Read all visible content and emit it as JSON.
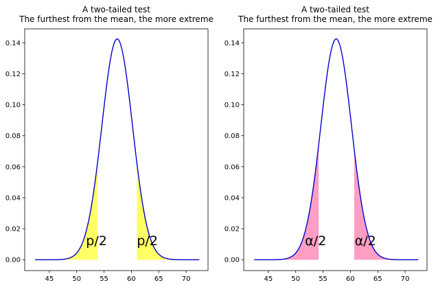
{
  "chart_data": [
    {
      "type": "line",
      "title": "A two-tailed test",
      "subtitle": "The furthest from the mean, the more extreme",
      "xlabel": "",
      "ylabel": "",
      "grid": false,
      "xlim": [
        40.5,
        74.0
      ],
      "ylim": [
        -0.007,
        0.149
      ],
      "x_ticks": [
        45,
        50,
        55,
        60,
        65,
        70
      ],
      "y_ticks": [
        0.0,
        0.02,
        0.04,
        0.06,
        0.08,
        0.1,
        0.12,
        0.14
      ],
      "y_tick_labels": [
        "0.00",
        "0.02",
        "0.04",
        "0.06",
        "0.08",
        "0.10",
        "0.12",
        "0.14"
      ],
      "curve": {
        "kind": "normal_pdf",
        "mean": 57.4,
        "sd": 2.8,
        "x_range": [
          42.4,
          72.4
        ],
        "peak": 0.1425,
        "color": "#0000cc"
      },
      "shaded_regions": [
        {
          "from": 42.4,
          "to": 53.8,
          "color": "#ffff66"
        },
        {
          "from": 61.0,
          "to": 72.4,
          "color": "#ffff66"
        }
      ],
      "annotations": [
        {
          "text": "p/2",
          "x": 51.7,
          "y": 0.0095
        },
        {
          "text": "p/2",
          "x": 61.0,
          "y": 0.0095
        }
      ]
    },
    {
      "type": "line",
      "title": "A two-tailed test",
      "subtitle": "The furthest from the mean, the more extreme",
      "xlabel": "",
      "ylabel": "",
      "grid": false,
      "xlim": [
        40.5,
        74.0
      ],
      "ylim": [
        -0.007,
        0.149
      ],
      "x_ticks": [
        45,
        50,
        55,
        60,
        65,
        70
      ],
      "y_ticks": [
        0.0,
        0.02,
        0.04,
        0.06,
        0.08,
        0.1,
        0.12,
        0.14
      ],
      "y_tick_labels": [
        "0.00",
        "0.02",
        "0.04",
        "0.06",
        "0.08",
        "0.10",
        "0.12",
        "0.14"
      ],
      "curve": {
        "kind": "normal_pdf",
        "mean": 57.4,
        "sd": 2.8,
        "x_range": [
          42.4,
          72.4
        ],
        "peak": 0.1425,
        "color": "#0000cc"
      },
      "shaded_regions": [
        {
          "from": 42.4,
          "to": 54.2,
          "color": "#ff9ec4"
        },
        {
          "from": 60.7,
          "to": 72.4,
          "color": "#ff9ec4"
        }
      ],
      "annotations": [
        {
          "text": "α/2",
          "x": 51.7,
          "y": 0.0095
        },
        {
          "text": "α/2",
          "x": 60.8,
          "y": 0.0095
        }
      ]
    }
  ]
}
